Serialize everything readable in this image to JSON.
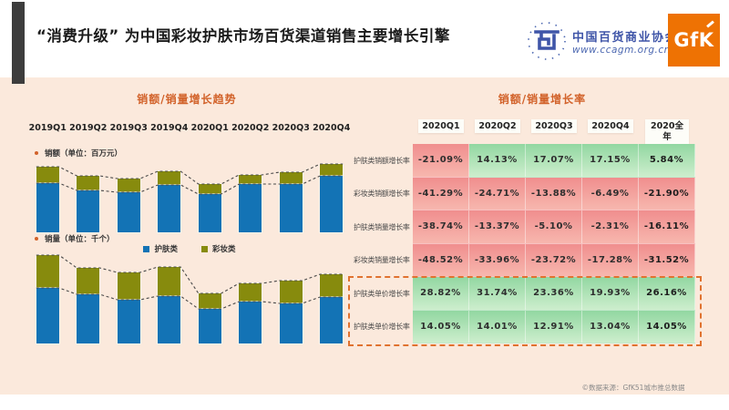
{
  "slide": {
    "title": "“消费升级” 为中国彩妆护肤市场百货渠道销售主要增长引擎",
    "footer": "©数据来源：GfK51城市推总数据"
  },
  "logos": {
    "association_name": "中国百货商业协会",
    "association_url": "www.ccagm.org.cn",
    "association_color": "#3f55a8",
    "gfk_label": "GfK",
    "gfk_color": "#ee7203"
  },
  "left_section": {
    "title": "销额/销量增长趋势",
    "amount_bullet": "销额（单位：百万元）",
    "volume_bullet": "销量（单位：千个）"
  },
  "right_section": {
    "title": "销额/销量增长率"
  },
  "colors": {
    "skincare_blue": "#1373b5",
    "makeup_olive": "#878b0d",
    "background_peach": "#fbe9dc",
    "accent_orange": "#d2622a",
    "table_red": "#f08e8e",
    "table_green": "#92d7a1",
    "highlight_dashed_orange": "#e0722f"
  },
  "chart_data": [
    {
      "type": "bar",
      "stacked": true,
      "title": "销额（单位：百万元）",
      "categories": [
        "2019Q1",
        "2019Q2",
        "2019Q3",
        "2019Q4",
        "2020Q1",
        "2020Q2",
        "2020Q3",
        "2020Q4"
      ],
      "series": [
        {
          "name": "护肤类",
          "color": "#1373b5",
          "values": [
            54,
            46,
            44,
            52,
            42,
            53,
            53,
            62
          ]
        },
        {
          "name": "彩妆类",
          "color": "#878b0d",
          "values": [
            18,
            16,
            15,
            15,
            11,
            10,
            13,
            13
          ]
        }
      ],
      "ylabel": "百万元",
      "axis_scale_shown": false,
      "note": "values are relative heights estimated from pixels; dashed trend lines connect segment tops",
      "legend_position": "between charts, center"
    },
    {
      "type": "bar",
      "stacked": true,
      "title": "销量（单位：千个）",
      "categories": [
        "2019Q1",
        "2019Q2",
        "2019Q3",
        "2019Q4",
        "2020Q1",
        "2020Q2",
        "2020Q3",
        "2020Q4"
      ],
      "series": [
        {
          "name": "护肤类",
          "color": "#1373b5",
          "values": [
            61,
            54,
            48,
            52,
            38,
            46,
            44,
            51
          ]
        },
        {
          "name": "彩妆类",
          "color": "#878b0d",
          "values": [
            36,
            29,
            30,
            32,
            17,
            20,
            25,
            25
          ]
        }
      ],
      "ylabel": "千个",
      "axis_scale_shown": false,
      "note": "values are relative heights estimated from pixels; dashed trend lines connect segment tops"
    },
    {
      "type": "table",
      "title": "销额/销量增长率",
      "columns": [
        "2020Q1",
        "2020Q2",
        "2020Q3",
        "2020Q4",
        "2020全年"
      ],
      "rows": [
        {
          "label": "护肤类销额增长率",
          "values": [
            "-21.09%",
            "14.13%",
            "17.07%",
            "17.15%",
            "5.84%"
          ],
          "highlighted": false
        },
        {
          "label": "彩妆类销额增长率",
          "values": [
            "-41.29%",
            "-24.71%",
            "-13.88%",
            "-6.49%",
            "-21.90%"
          ],
          "highlighted": false
        },
        {
          "label": "护肤类销量增长率",
          "values": [
            "-38.74%",
            "-13.37%",
            "-5.10%",
            "-2.31%",
            "-16.11%"
          ],
          "highlighted": false
        },
        {
          "label": "彩妆类销量增长率",
          "values": [
            "-48.52%",
            "-33.96%",
            "-23.72%",
            "-17.28%",
            "-31.52%"
          ],
          "highlighted": false
        },
        {
          "label": "护肤类单价增长率",
          "values": [
            "28.82%",
            "31.74%",
            "23.36%",
            "19.93%",
            "26.16%"
          ],
          "highlighted": true
        },
        {
          "label": "护肤类单价增长率",
          "values": [
            "14.05%",
            "14.01%",
            "12.91%",
            "13.04%",
            "14.05%"
          ],
          "highlighted": true
        }
      ],
      "cell_color_rule": "negative = red, positive = green; last column bold"
    }
  ]
}
